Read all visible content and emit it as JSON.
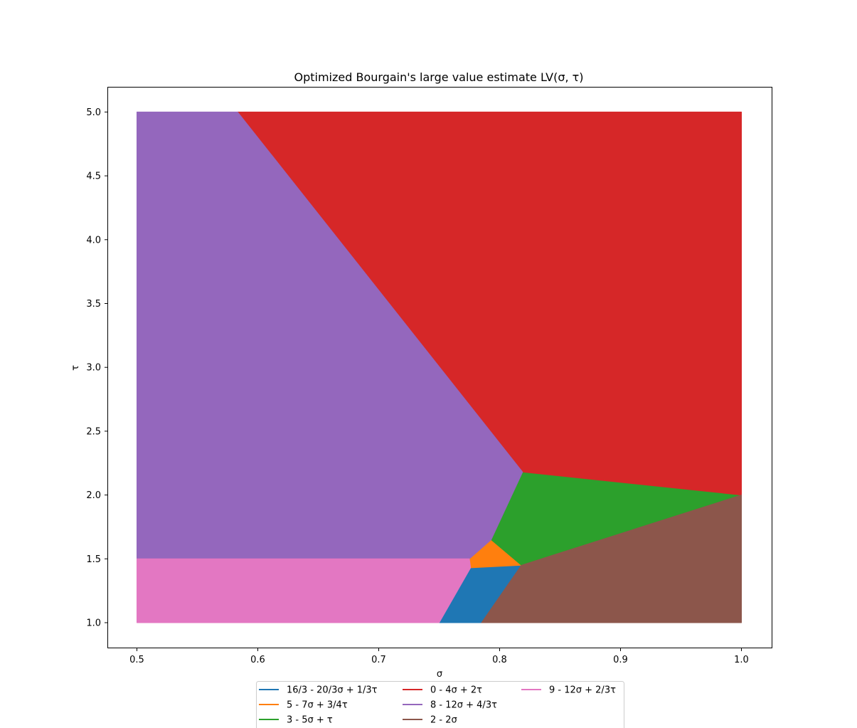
{
  "chart_data": {
    "type": "area",
    "title": "Optimized Bourgain's large value estimate LV(σ, τ)",
    "xlabel": "σ",
    "ylabel": "τ",
    "xlim": [
      0.476,
      1.025
    ],
    "ylim": [
      0.8,
      5.2
    ],
    "x_ticks": [
      "0.5",
      "0.6",
      "0.7",
      "0.8",
      "0.9",
      "1.0"
    ],
    "y_ticks": [
      "1.0",
      "1.5",
      "2.0",
      "2.5",
      "3.0",
      "3.5",
      "4.0",
      "4.5",
      "5.0"
    ],
    "grid": false,
    "legend_position": "below the plot, center",
    "series": [
      {
        "name": "16/3 - 20/3σ + 1/3τ",
        "color": "#1f77b4",
        "polygon": [
          [
            0.75,
            1.0
          ],
          [
            0.785,
            1.0
          ],
          [
            0.818,
            1.45
          ],
          [
            0.776,
            1.43
          ]
        ]
      },
      {
        "name": "5 - 7σ + 3/4τ",
        "color": "#ff7f0e",
        "polygon": [
          [
            0.776,
            1.43
          ],
          [
            0.775,
            1.5
          ],
          [
            0.793,
            1.65
          ],
          [
            0.818,
            1.45
          ]
        ]
      },
      {
        "name": "3 - 5σ + τ",
        "color": "#2ca02c",
        "polygon": [
          [
            0.793,
            1.65
          ],
          [
            0.819,
            2.18
          ],
          [
            1.0,
            2.0
          ],
          [
            0.818,
            1.45
          ]
        ]
      },
      {
        "name": "0 - 4σ + 2τ",
        "color": "#d62728",
        "polygon": [
          [
            0.5833,
            5.0
          ],
          [
            1.0,
            5.0
          ],
          [
            1.0,
            2.0
          ],
          [
            0.819,
            2.18
          ]
        ]
      },
      {
        "name": "8 - 12σ + 4/3τ",
        "color": "#9467bd",
        "polygon": [
          [
            0.5,
            1.5
          ],
          [
            0.5,
            5.0
          ],
          [
            0.5833,
            5.0
          ],
          [
            0.819,
            2.18
          ],
          [
            0.793,
            1.65
          ],
          [
            0.775,
            1.5
          ]
        ]
      },
      {
        "name": "2 - 2σ",
        "color": "#8c564b",
        "polygon": [
          [
            0.785,
            1.0
          ],
          [
            1.0,
            1.0
          ],
          [
            1.0,
            2.0
          ],
          [
            0.818,
            1.45
          ]
        ]
      },
      {
        "name": "9 - 12σ + 2/3τ",
        "color": "#e377c2",
        "polygon": [
          [
            0.5,
            1.0
          ],
          [
            0.5,
            1.5
          ],
          [
            0.775,
            1.5
          ],
          [
            0.776,
            1.43
          ],
          [
            0.75,
            1.0
          ]
        ]
      }
    ]
  }
}
